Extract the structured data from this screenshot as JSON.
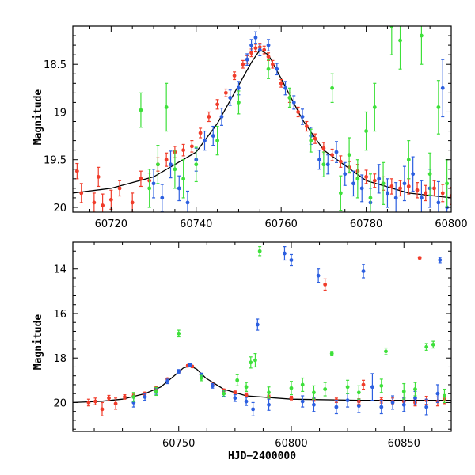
{
  "chart_data": [
    {
      "type": "scatter",
      "panel": "top",
      "title": "",
      "xlabel": "",
      "ylabel": "Magnitude",
      "xlim": [
        60711,
        60800
      ],
      "ylim": [
        20.05,
        18.1
      ],
      "y_inverted": true,
      "xticks": [
        60720,
        60740,
        60760,
        60780,
        60800
      ],
      "xtick_labels": [
        "60720",
        "60740",
        "60760",
        "60780",
        "60800"
      ],
      "yticks": [
        18.5,
        19,
        19.5,
        20
      ],
      "ytick_labels": [
        "18.5",
        "19",
        "19.5",
        "20"
      ],
      "grid": false,
      "legend": "none",
      "model_curve": {
        "color": "#000000",
        "x": [
          60711,
          60720,
          60730,
          60740,
          60745,
          60750,
          60753,
          60755,
          60757,
          60760,
          60765,
          60770,
          60780,
          60790,
          60800
        ],
        "y": [
          19.85,
          19.8,
          19.68,
          19.42,
          19.12,
          18.72,
          18.48,
          18.35,
          18.4,
          18.65,
          19.08,
          19.4,
          19.72,
          19.85,
          19.9
        ]
      },
      "series": [
        {
          "color": "#f03c2a",
          "x": [
            60712,
            60713,
            60716,
            60717,
            60718,
            60720,
            60722,
            60725,
            60727,
            60729,
            60731,
            60733,
            60735,
            60737,
            60739,
            60741,
            60743,
            60745,
            60747,
            60749,
            60751,
            60752,
            60753,
            60754,
            60755,
            60756,
            60757,
            60758,
            60760,
            60762,
            60764,
            60766,
            60768,
            60770,
            60772,
            60774,
            60776,
            60778,
            60780,
            60782,
            60784,
            60786,
            60788,
            60790,
            60792,
            60794,
            60796,
            60798,
            60800
          ],
          "y": [
            19.62,
            19.85,
            19.95,
            19.68,
            19.98,
            19.92,
            19.8,
            19.95,
            19.7,
            19.72,
            19.55,
            19.5,
            19.42,
            19.4,
            19.36,
            19.22,
            19.05,
            18.92,
            18.8,
            18.62,
            18.5,
            18.45,
            18.38,
            18.33,
            18.32,
            18.35,
            18.42,
            18.5,
            18.7,
            18.85,
            19.0,
            19.15,
            19.28,
            19.38,
            19.45,
            19.52,
            19.58,
            19.62,
            19.68,
            19.72,
            19.75,
            19.78,
            19.8,
            19.78,
            19.82,
            19.85,
            19.8,
            19.85,
            19.88
          ],
          "err": [
            0.08,
            0.1,
            0.1,
            0.1,
            0.12,
            0.1,
            0.08,
            0.1,
            0.08,
            0.08,
            0.07,
            0.07,
            0.06,
            0.06,
            0.06,
            0.05,
            0.05,
            0.05,
            0.04,
            0.04,
            0.04,
            0.04,
            0.04,
            0.04,
            0.04,
            0.04,
            0.04,
            0.04,
            0.04,
            0.05,
            0.05,
            0.05,
            0.05,
            0.06,
            0.06,
            0.06,
            0.06,
            0.07,
            0.07,
            0.07,
            0.07,
            0.08,
            0.08,
            0.08,
            0.08,
            0.08,
            0.08,
            0.09,
            0.09
          ]
        },
        {
          "color": "#2c5fe0",
          "x": [
            60730,
            60732,
            60734,
            60736,
            60738,
            60740,
            60742,
            60744,
            60746,
            60748,
            60750,
            60752,
            60753,
            60754,
            60755,
            60757,
            60759,
            60761,
            60763,
            60765,
            60767,
            60769,
            60771,
            60773,
            60775,
            60777,
            60779,
            60781,
            60783,
            60785,
            60787,
            60789,
            60791,
            60793,
            60795,
            60797,
            60798,
            60799
          ],
          "y": [
            19.75,
            19.9,
            19.55,
            19.8,
            19.95,
            19.5,
            19.3,
            19.25,
            19.05,
            18.85,
            18.75,
            18.45,
            18.3,
            18.22,
            18.35,
            18.3,
            18.55,
            18.75,
            18.9,
            19.05,
            19.25,
            19.5,
            19.55,
            19.42,
            19.65,
            19.75,
            19.8,
            19.95,
            19.7,
            19.85,
            19.9,
            19.75,
            19.65,
            19.9,
            19.8,
            19.95,
            18.75,
            20.0
          ],
          "err": [
            0.15,
            0.14,
            0.14,
            0.13,
            0.12,
            0.12,
            0.1,
            0.1,
            0.09,
            0.08,
            0.07,
            0.06,
            0.06,
            0.06,
            0.06,
            0.06,
            0.06,
            0.07,
            0.07,
            0.08,
            0.09,
            0.1,
            0.1,
            0.11,
            0.12,
            0.13,
            0.14,
            0.15,
            0.15,
            0.15,
            0.16,
            0.18,
            0.18,
            0.18,
            0.2,
            0.22,
            0.3,
            0.25
          ]
        },
        {
          "color": "#3ee03a",
          "x": [
            60727,
            60729,
            60731,
            60733,
            60735,
            60737,
            60740,
            60745,
            60750,
            60757,
            60762,
            60767,
            60770,
            60772,
            60774,
            60776,
            60778,
            60780,
            60781,
            60782,
            60784,
            60786,
            60788,
            60790,
            60793,
            60795,
            60797,
            60799
          ],
          "y": [
            18.98,
            19.8,
            19.55,
            18.95,
            19.6,
            19.7,
            19.55,
            19.3,
            18.9,
            18.55,
            18.85,
            19.3,
            19.55,
            18.75,
            19.85,
            19.45,
            19.7,
            19.2,
            19.9,
            18.95,
            19.75,
            18.1,
            18.25,
            19.5,
            18.2,
            19.65,
            18.95,
            19.75
          ],
          "err": [
            0.18,
            0.2,
            0.2,
            0.25,
            0.2,
            0.2,
            0.18,
            0.15,
            0.12,
            0.1,
            0.1,
            0.12,
            0.13,
            0.15,
            0.18,
            0.18,
            0.2,
            0.2,
            0.25,
            0.25,
            0.22,
            0.3,
            0.3,
            0.2,
            0.3,
            0.22,
            0.28,
            0.25
          ]
        }
      ]
    },
    {
      "type": "scatter",
      "panel": "bottom",
      "title": "",
      "xlabel": "HJD−2400000",
      "ylabel": "Magnitude",
      "xlim": [
        60703,
        60871
      ],
      "ylim": [
        21.3,
        12.8
      ],
      "y_inverted": true,
      "xticks": [
        60750,
        60800,
        60850
      ],
      "xtick_labels": [
        "60750",
        "60800",
        "60850"
      ],
      "yticks": [
        14,
        16,
        18,
        20
      ],
      "ytick_labels": [
        "14",
        "16",
        "18",
        "20"
      ],
      "grid": false,
      "legend": "none",
      "model_curve": {
        "color": "#000000",
        "x": [
          60703,
          60715,
          60725,
          60735,
          60742,
          60748,
          60752,
          60755,
          60758,
          60762,
          60770,
          60780,
          60800,
          60830,
          60871
        ],
        "y": [
          20.0,
          19.95,
          19.85,
          19.6,
          19.3,
          18.8,
          18.45,
          18.35,
          18.5,
          18.9,
          19.4,
          19.7,
          19.85,
          19.9,
          19.9
        ]
      },
      "series": [
        {
          "color": "#f03c2a",
          "x": [
            60710,
            60713,
            60716,
            60719,
            60722,
            60726,
            60730,
            60735,
            60740,
            60745,
            60750,
            60754,
            60756,
            60760,
            60765,
            60770,
            60775,
            60780,
            60790,
            60800,
            60810,
            60815,
            60820,
            60830,
            60840,
            60845,
            60850,
            60855,
            60860,
            60865,
            60868,
            60832,
            60857
          ],
          "y": [
            20.0,
            19.95,
            20.3,
            19.8,
            20.05,
            19.75,
            19.7,
            19.6,
            19.35,
            18.95,
            18.6,
            18.35,
            18.38,
            18.75,
            19.2,
            19.45,
            19.55,
            19.65,
            19.75,
            19.8,
            19.85,
            14.7,
            19.9,
            19.95,
            19.9,
            19.95,
            19.95,
            20.0,
            19.9,
            19.95,
            19.85,
            19.2,
            13.5
          ],
          "err": [
            0.15,
            0.15,
            0.3,
            0.12,
            0.25,
            0.1,
            0.08,
            0.07,
            0.06,
            0.05,
            0.05,
            0.05,
            0.05,
            0.05,
            0.06,
            0.06,
            0.07,
            0.08,
            0.08,
            0.08,
            0.09,
            0.25,
            0.1,
            0.12,
            0.12,
            0.15,
            0.15,
            0.15,
            0.18,
            0.2,
            0.2,
            0.2,
            0.05
          ]
        },
        {
          "color": "#2c5fe0",
          "x": [
            60730,
            60735,
            60740,
            60745,
            60750,
            60755,
            60760,
            60765,
            60770,
            60775,
            60780,
            60783,
            60785,
            60790,
            60797,
            60800,
            60805,
            60810,
            60812,
            60820,
            60825,
            60830,
            60832,
            60836,
            60840,
            60845,
            60850,
            60855,
            60860,
            60865,
            60866
          ],
          "y": [
            20.0,
            19.75,
            19.5,
            19.05,
            18.6,
            18.3,
            18.75,
            19.25,
            19.6,
            19.8,
            19.95,
            20.3,
            16.5,
            20.1,
            13.3,
            13.6,
            19.95,
            20.1,
            14.3,
            20.2,
            19.9,
            20.15,
            14.1,
            19.3,
            20.2,
            20.0,
            20.1,
            19.8,
            20.2,
            19.6,
            13.6
          ],
          "err": [
            0.2,
            0.15,
            0.13,
            0.1,
            0.08,
            0.06,
            0.07,
            0.1,
            0.12,
            0.15,
            0.18,
            0.3,
            0.25,
            0.25,
            0.3,
            0.25,
            0.25,
            0.3,
            0.3,
            0.3,
            0.3,
            0.3,
            0.3,
            0.6,
            0.3,
            0.3,
            0.3,
            0.3,
            0.35,
            0.4,
            0.12
          ]
        },
        {
          "color": "#3ee03a",
          "x": [
            60730,
            60740,
            60750,
            60760,
            60770,
            60776,
            60780,
            60782,
            60784,
            60786,
            60790,
            60800,
            60805,
            60810,
            60815,
            60818,
            60825,
            60830,
            60840,
            60842,
            60850,
            60855,
            60860,
            60863,
            60868
          ],
          "y": [
            19.75,
            19.5,
            16.9,
            18.9,
            19.6,
            19.0,
            19.3,
            18.2,
            18.1,
            13.2,
            19.55,
            19.35,
            19.2,
            19.55,
            19.4,
            17.8,
            19.3,
            19.55,
            19.25,
            17.7,
            19.5,
            19.4,
            17.5,
            17.4,
            19.7
          ],
          "err": [
            0.2,
            0.18,
            0.15,
            0.12,
            0.15,
            0.25,
            0.2,
            0.25,
            0.3,
            0.2,
            0.25,
            0.3,
            0.3,
            0.3,
            0.3,
            0.1,
            0.3,
            0.3,
            0.3,
            0.15,
            0.35,
            0.3,
            0.15,
            0.15,
            0.3
          ]
        }
      ]
    }
  ]
}
